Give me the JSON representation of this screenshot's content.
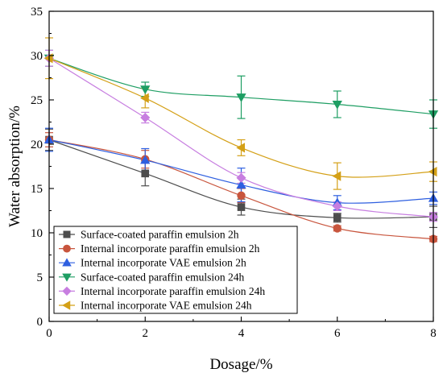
{
  "chart_data": {
    "type": "line",
    "xlabel": "Dosage/%",
    "ylabel": "Water absorption/%",
    "xlim": [
      0,
      8
    ],
    "ylim": [
      0,
      35
    ],
    "x_ticks": [
      0,
      2,
      4,
      6,
      8
    ],
    "y_ticks": [
      0,
      5,
      10,
      15,
      20,
      25,
      30,
      35
    ],
    "x_tick_labels": [
      "0",
      "2",
      "4",
      "6",
      "8"
    ],
    "y_tick_labels": [
      "0",
      "5",
      "10",
      "15",
      "20",
      "25",
      "30",
      "35"
    ],
    "grid": false,
    "legend_position": "bottom-left",
    "x": [
      0,
      2,
      4,
      6,
      8
    ],
    "series": [
      {
        "name": "Surface-coated paraffin emulsion 2h",
        "color": "#4d4d4d",
        "marker": "square",
        "values": [
          20.5,
          16.7,
          12.9,
          11.7,
          11.8
        ],
        "errors": [
          1.2,
          1.4,
          0.9,
          0.5,
          1.2
        ]
      },
      {
        "name": "Internal incorporate paraffin emulsion 2h",
        "color": "#c8553d",
        "marker": "circle",
        "values": [
          20.5,
          18.3,
          14.2,
          10.5,
          9.3
        ],
        "errors": [
          0.8,
          1.0,
          0.8,
          0.3,
          0.3
        ]
      },
      {
        "name": "Internal incorporate VAE emulsion 2h",
        "color": "#2e5fe0",
        "marker": "triangle-up",
        "values": [
          20.5,
          18.2,
          15.4,
          13.4,
          13.9
        ],
        "errors": [
          1.3,
          1.3,
          1.9,
          0.8,
          0.7
        ]
      },
      {
        "name": "Surface-coated paraffin emulsion 24h",
        "color": "#1e9e63",
        "marker": "triangle-down",
        "values": [
          29.7,
          26.2,
          25.3,
          24.5,
          23.4
        ],
        "errors": [
          0.9,
          0.8,
          2.4,
          1.5,
          1.6
        ]
      },
      {
        "name": "Internal incorporate paraffin emulsion 24h",
        "color": "#c77ee0",
        "marker": "diamond",
        "values": [
          29.7,
          23.0,
          16.2,
          13.0,
          11.8
        ],
        "errors": [
          0.9,
          0.6,
          0.6,
          0.5,
          0.5
        ]
      },
      {
        "name": "Internal incorporate VAE emulsion 24h",
        "color": "#d4a017",
        "marker": "triangle-left",
        "values": [
          29.7,
          25.2,
          19.6,
          16.4,
          16.9
        ],
        "errors": [
          2.3,
          1.1,
          0.9,
          1.5,
          1.1
        ]
      }
    ]
  }
}
